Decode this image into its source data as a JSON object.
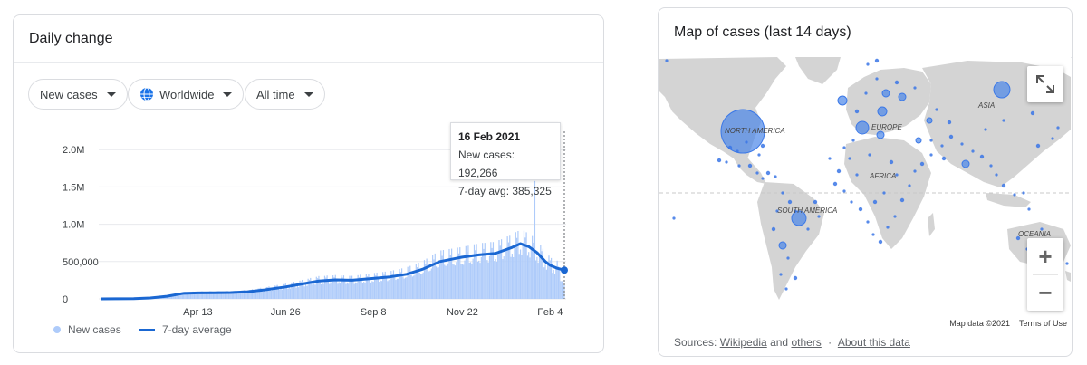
{
  "left_card": {
    "title": "Daily change",
    "filters": {
      "metric": "New cases",
      "region": "Worldwide",
      "range": "All time"
    },
    "tooltip": {
      "date": "16 Feb 2021",
      "new_cases": "New cases: 192,266",
      "avg": "7-day avg: 385,325"
    },
    "legend": {
      "bars": "New cases",
      "line": "7-day average"
    }
  },
  "chart_data": {
    "type": "bar",
    "title": "Daily change",
    "y_ticks": [
      "0",
      "500,000",
      "1.0M",
      "1.5M",
      "2.0M"
    ],
    "y_tick_values": [
      0,
      500000,
      1000000,
      1500000,
      2000000
    ],
    "x_ticks": [
      "Apr 13",
      "Jun 26",
      "Sep 8",
      "Nov 22",
      "Feb 4"
    ],
    "ylim": [
      0,
      2100000
    ],
    "grid": true,
    "legend_position": "bottom-left",
    "series": [
      {
        "name": "New cases",
        "kind": "bar",
        "color": "#aecbfa",
        "dates": [
          "2020-01-22",
          "2020-02-05",
          "2020-02-19",
          "2020-03-04",
          "2020-03-18",
          "2020-04-01",
          "2020-04-13",
          "2020-04-27",
          "2020-05-11",
          "2020-05-25",
          "2020-06-08",
          "2020-06-26",
          "2020-07-10",
          "2020-07-24",
          "2020-08-07",
          "2020-08-21",
          "2020-09-08",
          "2020-09-22",
          "2020-10-06",
          "2020-10-20",
          "2020-11-03",
          "2020-11-22",
          "2020-12-06",
          "2020-12-20",
          "2021-01-03",
          "2021-01-10",
          "2021-01-17",
          "2021-01-24",
          "2021-01-31",
          "2021-02-04",
          "2021-02-10",
          "2021-02-16"
        ],
        "values": [
          1000,
          2000,
          3000,
          15000,
          40000,
          80000,
          85000,
          88000,
          90000,
          100000,
          130000,
          170000,
          210000,
          250000,
          260000,
          250000,
          280000,
          300000,
          340000,
          410000,
          520000,
          560000,
          600000,
          620000,
          700000,
          760000,
          720000,
          640000,
          520000,
          460000,
          420000,
          192266
        ]
      },
      {
        "name": "7-day average",
        "kind": "line",
        "color": "#1a67d2",
        "dates": [
          "2020-01-22",
          "2020-02-05",
          "2020-02-19",
          "2020-03-04",
          "2020-03-18",
          "2020-04-01",
          "2020-04-13",
          "2020-04-27",
          "2020-05-11",
          "2020-05-25",
          "2020-06-08",
          "2020-06-26",
          "2020-07-10",
          "2020-07-24",
          "2020-08-07",
          "2020-08-21",
          "2020-09-08",
          "2020-09-22",
          "2020-10-06",
          "2020-10-20",
          "2020-11-03",
          "2020-11-22",
          "2020-12-06",
          "2020-12-20",
          "2021-01-03",
          "2021-01-10",
          "2021-01-17",
          "2021-01-24",
          "2021-01-31",
          "2021-02-04",
          "2021-02-10",
          "2021-02-16"
        ],
        "values": [
          500,
          1500,
          2500,
          12000,
          35000,
          75000,
          80000,
          82000,
          85000,
          95000,
          120000,
          160000,
          200000,
          240000,
          255000,
          250000,
          275000,
          295000,
          330000,
          400000,
          500000,
          560000,
          590000,
          610000,
          690000,
          740000,
          700000,
          620000,
          500000,
          450000,
          410000,
          385325
        ]
      }
    ]
  },
  "right_card": {
    "title": "Map of cases (last 14 days)",
    "labels": {
      "north_america": "NORTH AMERICA",
      "south_america": "SOUTH AMERICA",
      "europe": "EUROPE",
      "asia": "ASIA",
      "africa": "AFRICA",
      "oceania": "OCEANIA"
    },
    "attribution": {
      "map_data": "Map data ©2021",
      "terms": "Terms of Use"
    },
    "sources": {
      "prefix": "Sources:",
      "wikipedia": "Wikipedia",
      "and": "and",
      "others": "others",
      "sep": "·",
      "about": "About this data"
    },
    "controls": {
      "zoom_in": "+",
      "zoom_out": "−"
    }
  },
  "colors": {
    "accent": "#1a73e8",
    "line": "#1a67d2",
    "bars": "#aecbfa",
    "land": "#d4d4d4",
    "water": "#ffffff",
    "bubble": "#4a86e8"
  }
}
